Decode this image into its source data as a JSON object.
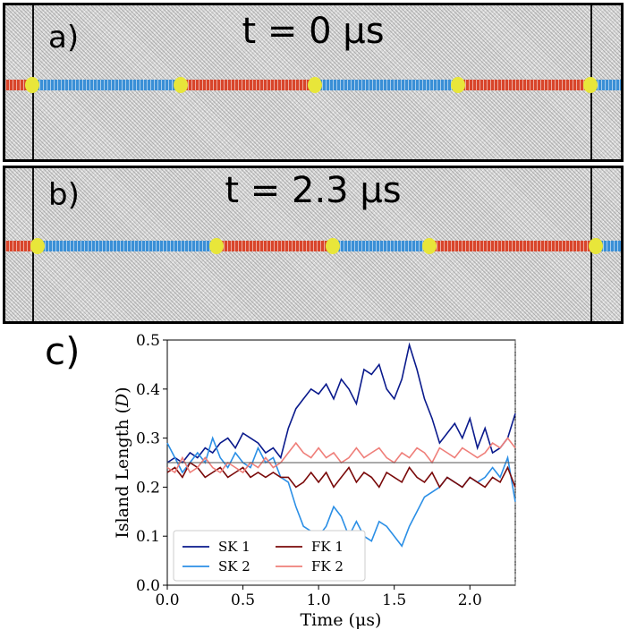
{
  "panel_a": {
    "label": "a)",
    "time": "t = 0 μs"
  },
  "panel_b": {
    "label": "b)",
    "time": "t = 2.3 μs"
  },
  "panel_c": {
    "label": "c)"
  },
  "colors": {
    "sk": "#3a8fd6",
    "fk": "#d8452b",
    "kink": "#e8e63a"
  },
  "chart_data": {
    "type": "line",
    "xlabel": "Time (μs)",
    "ylabel": "Island Length (D)",
    "ylabel_main": "Island Length (",
    "ylabel_var": "D",
    "ylabel_end": ")",
    "xlim": [
      0.0,
      2.3
    ],
    "ylim": [
      0.0,
      0.5
    ],
    "xticks": [
      0.0,
      0.5,
      1.0,
      1.5,
      2.0
    ],
    "xtick_labels": [
      "0.0",
      "0.5",
      "1.0",
      "1.5",
      "2.0"
    ],
    "yticks": [
      0.0,
      0.1,
      0.2,
      0.3,
      0.4,
      0.5
    ],
    "ytick_labels": [
      "0.0",
      "0.1",
      "0.2",
      "0.3",
      "0.4",
      "0.5"
    ],
    "reference_line": 0.25,
    "legend_location": "lower-left",
    "series": [
      {
        "name": "SK 1",
        "color": "#0a1a8c",
        "x": [
          0.0,
          0.05,
          0.1,
          0.15,
          0.2,
          0.25,
          0.3,
          0.35,
          0.4,
          0.45,
          0.5,
          0.55,
          0.6,
          0.65,
          0.7,
          0.75,
          0.8,
          0.85,
          0.9,
          0.95,
          1.0,
          1.05,
          1.1,
          1.15,
          1.2,
          1.25,
          1.3,
          1.35,
          1.4,
          1.45,
          1.5,
          1.55,
          1.6,
          1.65,
          1.7,
          1.75,
          1.8,
          1.85,
          1.9,
          1.95,
          2.0,
          2.05,
          2.1,
          2.15,
          2.2,
          2.25,
          2.3
        ],
        "y": [
          0.25,
          0.26,
          0.25,
          0.27,
          0.26,
          0.28,
          0.27,
          0.29,
          0.3,
          0.28,
          0.31,
          0.3,
          0.29,
          0.27,
          0.28,
          0.26,
          0.32,
          0.36,
          0.38,
          0.4,
          0.39,
          0.41,
          0.38,
          0.42,
          0.4,
          0.37,
          0.44,
          0.43,
          0.45,
          0.4,
          0.38,
          0.42,
          0.49,
          0.44,
          0.38,
          0.34,
          0.29,
          0.31,
          0.33,
          0.3,
          0.34,
          0.28,
          0.32,
          0.27,
          0.28,
          0.3,
          0.35
        ]
      },
      {
        "name": "SK 2",
        "color": "#2b8fe6",
        "x": [
          0.0,
          0.05,
          0.1,
          0.15,
          0.2,
          0.25,
          0.3,
          0.35,
          0.4,
          0.45,
          0.5,
          0.55,
          0.6,
          0.65,
          0.7,
          0.75,
          0.8,
          0.85,
          0.9,
          0.95,
          1.0,
          1.05,
          1.1,
          1.15,
          1.2,
          1.25,
          1.3,
          1.35,
          1.4,
          1.45,
          1.5,
          1.55,
          1.6,
          1.65,
          1.7,
          1.75,
          1.8,
          1.85,
          1.9,
          1.95,
          2.0,
          2.05,
          2.1,
          2.15,
          2.2,
          2.25,
          2.3
        ],
        "y": [
          0.29,
          0.26,
          0.23,
          0.25,
          0.27,
          0.25,
          0.3,
          0.26,
          0.24,
          0.27,
          0.25,
          0.24,
          0.28,
          0.25,
          0.26,
          0.22,
          0.21,
          0.16,
          0.12,
          0.11,
          0.1,
          0.12,
          0.16,
          0.14,
          0.1,
          0.13,
          0.1,
          0.09,
          0.13,
          0.12,
          0.1,
          0.08,
          0.12,
          0.15,
          0.18,
          0.19,
          0.2,
          0.22,
          0.21,
          0.2,
          0.22,
          0.21,
          0.22,
          0.24,
          0.22,
          0.26,
          0.17
        ]
      },
      {
        "name": "FK 1",
        "color": "#7a0a0a",
        "x": [
          0.0,
          0.05,
          0.1,
          0.15,
          0.2,
          0.25,
          0.3,
          0.35,
          0.4,
          0.45,
          0.5,
          0.55,
          0.6,
          0.65,
          0.7,
          0.75,
          0.8,
          0.85,
          0.9,
          0.95,
          1.0,
          1.05,
          1.1,
          1.15,
          1.2,
          1.25,
          1.3,
          1.35,
          1.4,
          1.45,
          1.5,
          1.55,
          1.6,
          1.65,
          1.7,
          1.75,
          1.8,
          1.85,
          1.9,
          1.95,
          2.0,
          2.05,
          2.1,
          2.15,
          2.2,
          2.25,
          2.3
        ],
        "y": [
          0.23,
          0.24,
          0.22,
          0.25,
          0.24,
          0.22,
          0.23,
          0.24,
          0.22,
          0.23,
          0.24,
          0.22,
          0.23,
          0.22,
          0.23,
          0.22,
          0.22,
          0.2,
          0.21,
          0.23,
          0.21,
          0.23,
          0.2,
          0.22,
          0.24,
          0.21,
          0.23,
          0.22,
          0.2,
          0.23,
          0.22,
          0.21,
          0.24,
          0.22,
          0.21,
          0.23,
          0.2,
          0.22,
          0.21,
          0.2,
          0.22,
          0.21,
          0.2,
          0.22,
          0.21,
          0.24,
          0.2
        ]
      },
      {
        "name": "FK 2",
        "color": "#ef7f7a",
        "x": [
          0.0,
          0.05,
          0.1,
          0.15,
          0.2,
          0.25,
          0.3,
          0.35,
          0.4,
          0.45,
          0.5,
          0.55,
          0.6,
          0.65,
          0.7,
          0.75,
          0.8,
          0.85,
          0.9,
          0.95,
          1.0,
          1.05,
          1.1,
          1.15,
          1.2,
          1.25,
          1.3,
          1.35,
          1.4,
          1.45,
          1.5,
          1.55,
          1.6,
          1.65,
          1.7,
          1.75,
          1.8,
          1.85,
          1.9,
          1.95,
          2.0,
          2.05,
          2.1,
          2.15,
          2.2,
          2.25,
          2.3
        ],
        "y": [
          0.24,
          0.23,
          0.26,
          0.23,
          0.24,
          0.26,
          0.24,
          0.23,
          0.25,
          0.24,
          0.23,
          0.25,
          0.24,
          0.26,
          0.24,
          0.25,
          0.27,
          0.29,
          0.27,
          0.26,
          0.28,
          0.26,
          0.27,
          0.25,
          0.26,
          0.28,
          0.26,
          0.27,
          0.28,
          0.26,
          0.25,
          0.27,
          0.26,
          0.28,
          0.27,
          0.25,
          0.28,
          0.27,
          0.26,
          0.28,
          0.27,
          0.26,
          0.27,
          0.29,
          0.28,
          0.3,
          0.28
        ]
      }
    ]
  }
}
